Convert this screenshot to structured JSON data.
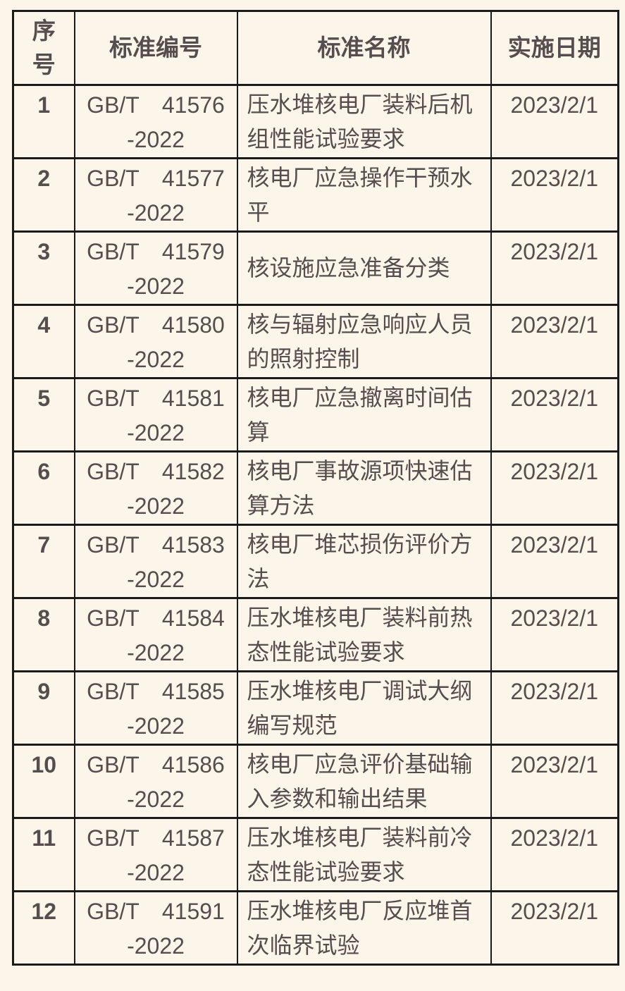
{
  "colors": {
    "background": "#fcf5e9",
    "border": "#1a1a1a",
    "text": "#564d4e"
  },
  "table": {
    "columns": [
      {
        "key": "no",
        "label": "序号"
      },
      {
        "key": "code",
        "label": "标准编号"
      },
      {
        "key": "name",
        "label": "标准名称"
      },
      {
        "key": "date",
        "label": "实施日期"
      }
    ],
    "rows": [
      {
        "no": "1",
        "code": "GB/T 41576\n-2022",
        "name": "压水堆核电厂装料后机组性能试验要求",
        "date": "2023/2/1"
      },
      {
        "no": "2",
        "code": "GB/T 41577\n-2022",
        "name": "核电厂应急操作干预水平",
        "date": "2023/2/1"
      },
      {
        "no": "3",
        "code": "GB/T 41579\n-2022",
        "name": "核设施应急准备分类",
        "date": "2023/2/1"
      },
      {
        "no": "4",
        "code": "GB/T 41580\n-2022",
        "name": "核与辐射应急响应人员的照射控制",
        "date": "2023/2/1"
      },
      {
        "no": "5",
        "code": "GB/T 41581\n-2022",
        "name": "核电厂应急撤离时间估算",
        "date": "2023/2/1"
      },
      {
        "no": "6",
        "code": "GB/T 41582\n-2022",
        "name": "核电厂事故源项快速估算方法",
        "date": "2023/2/1"
      },
      {
        "no": "7",
        "code": "GB/T 41583\n-2022",
        "name": "核电厂堆芯损伤评价方法",
        "date": "2023/2/1"
      },
      {
        "no": "8",
        "code": "GB/T 41584\n-2022",
        "name": "压水堆核电厂装料前热态性能试验要求",
        "date": "2023/2/1"
      },
      {
        "no": "9",
        "code": "GB/T 41585\n-2022",
        "name": "压水堆核电厂调试大纲编写规范",
        "date": "2023/2/1"
      },
      {
        "no": "10",
        "code": "GB/T 41586\n-2022",
        "name": "核电厂应急评价基础输入参数和输出结果",
        "date": "2023/2/1"
      },
      {
        "no": "11",
        "code": "GB/T 41587\n-2022",
        "name": "压水堆核电厂装料前冷态性能试验要求",
        "date": "2023/2/1"
      },
      {
        "no": "12",
        "code": "GB/T 41591\n-2022",
        "name": "压水堆核电厂反应堆首次临界试验",
        "date": "2023/2/1"
      }
    ]
  }
}
